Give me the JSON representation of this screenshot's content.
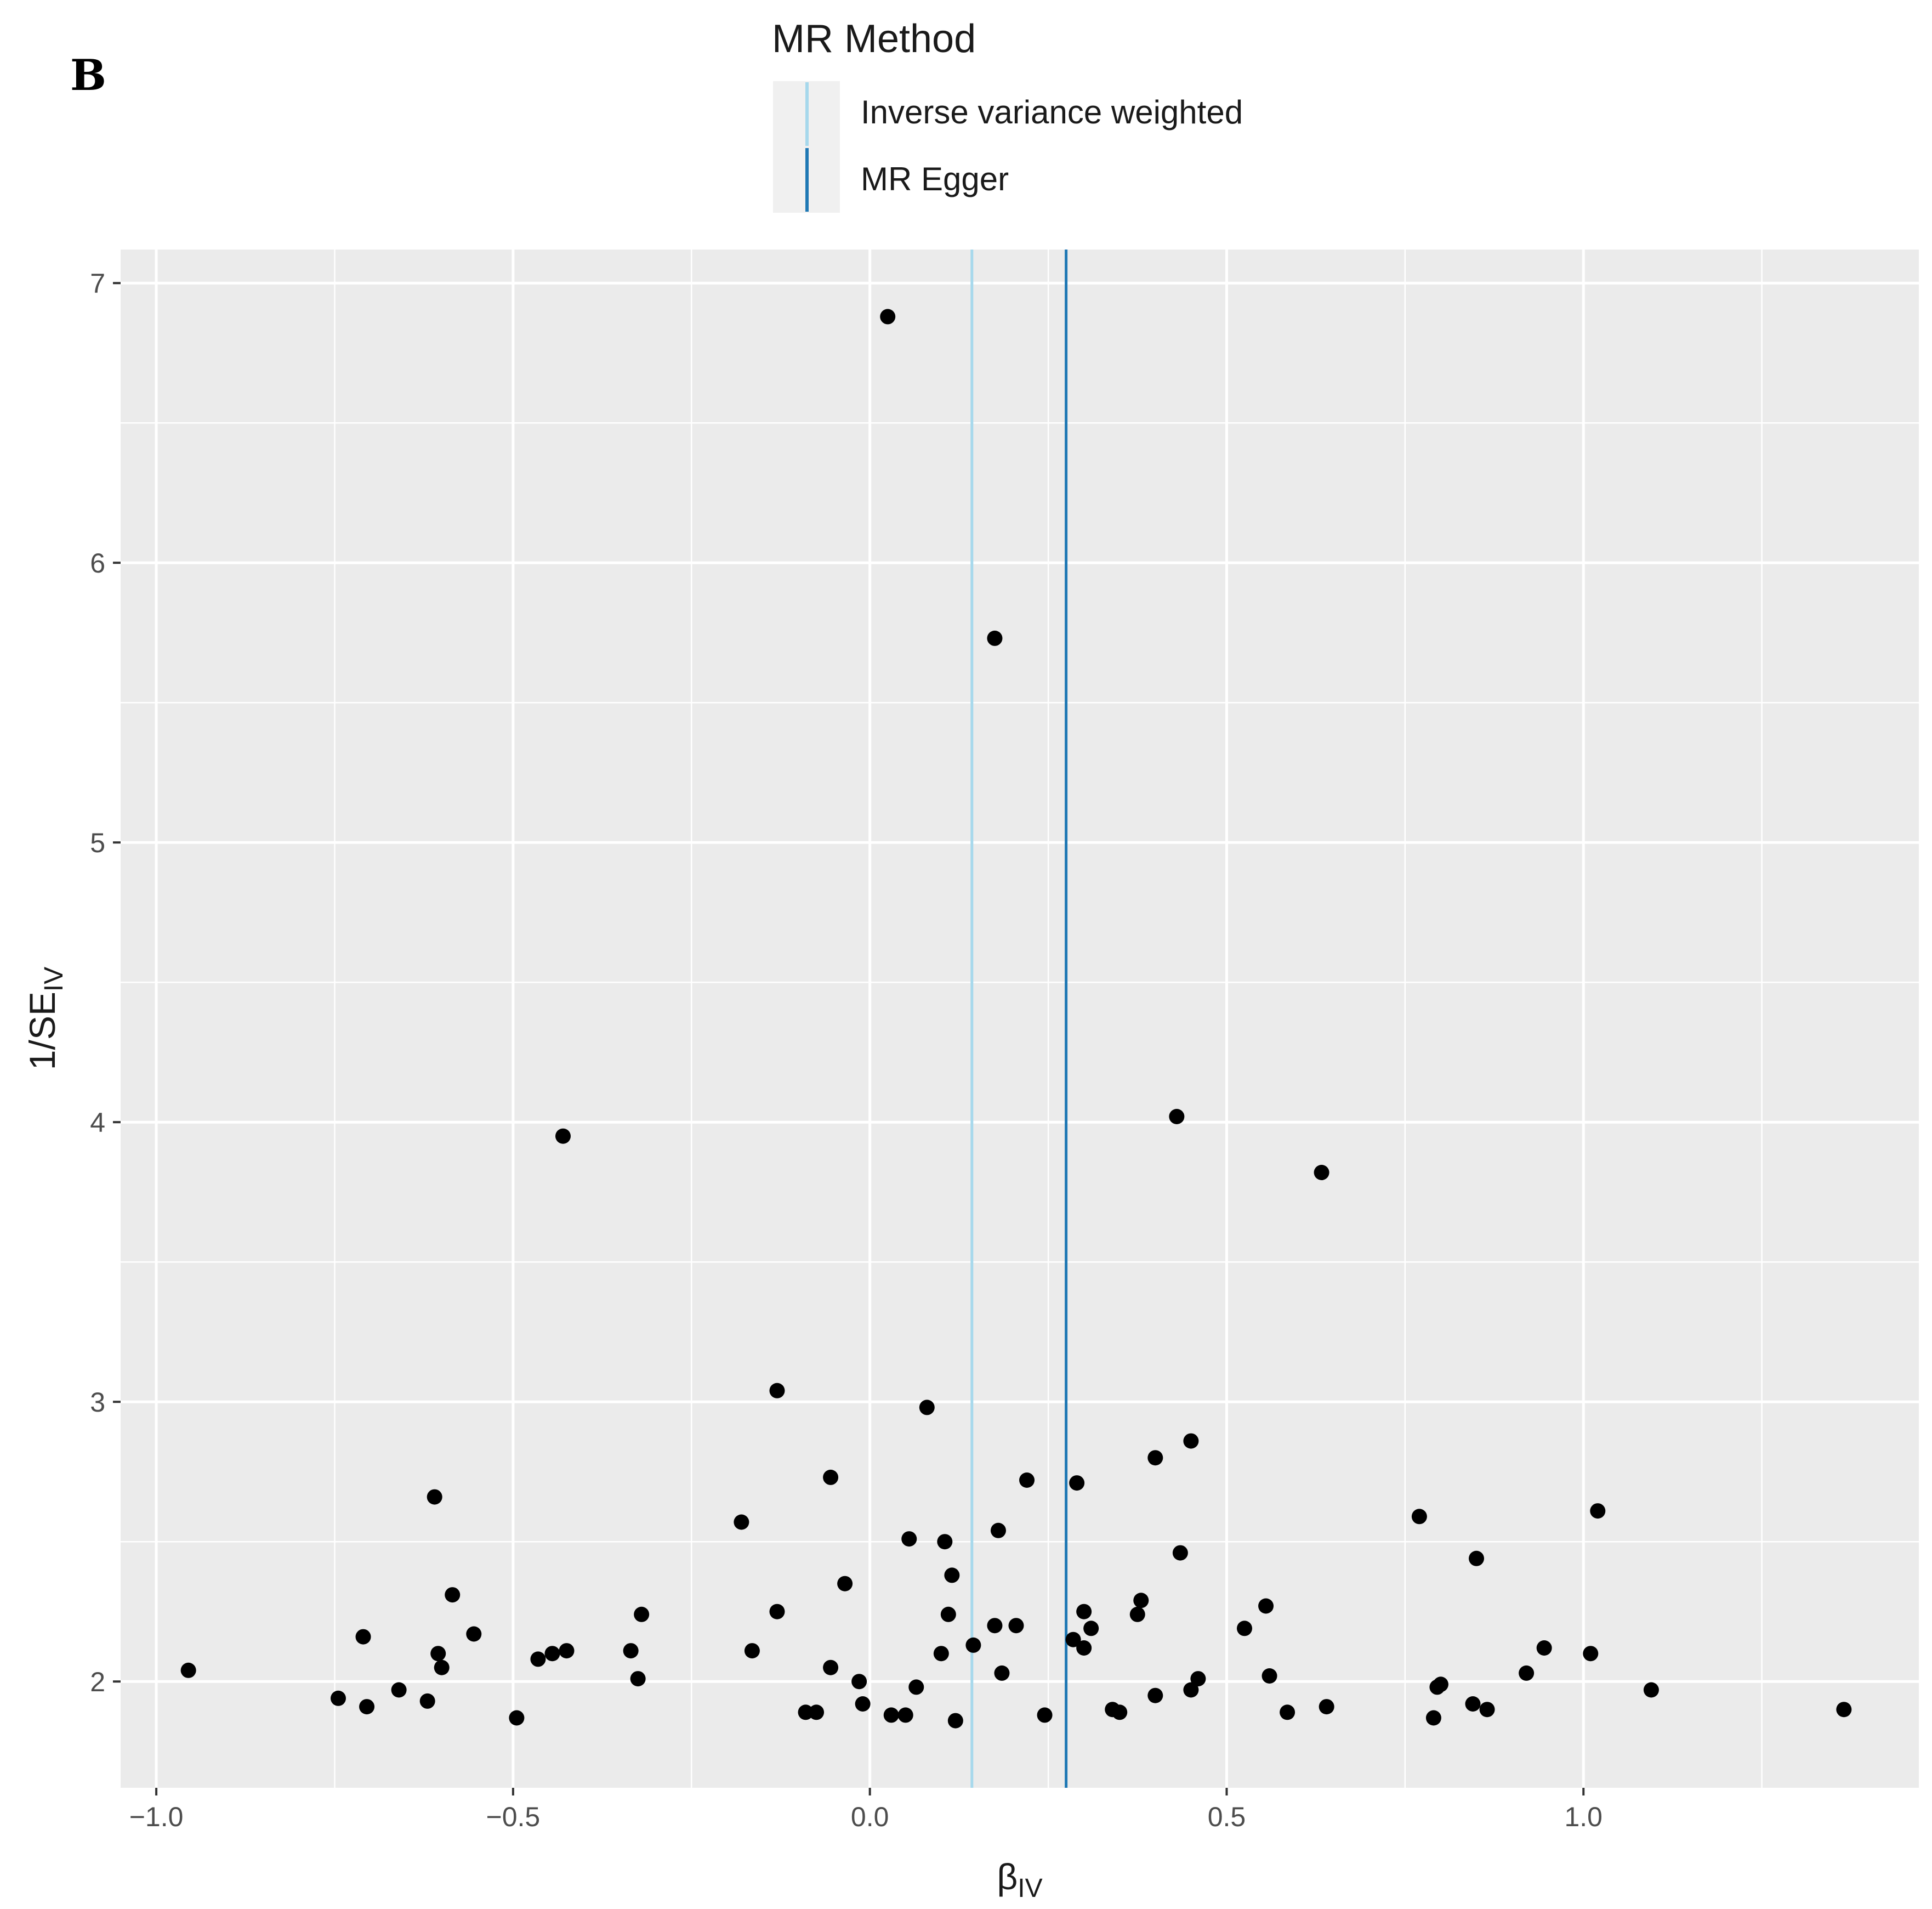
{
  "panel_label": "B",
  "legend": {
    "title": "MR Method",
    "entries": [
      {
        "label": "Inverse variance weighted",
        "color": "#a6d8ec"
      },
      {
        "label": "MR Egger",
        "color": "#1f78b4"
      }
    ]
  },
  "chart_data": {
    "type": "scatter",
    "title": "",
    "xlabel": "β",
    "xlabel_sub": "IV",
    "ylabel": "1/SE",
    "ylabel_sub": "IV",
    "xlim": [
      -1.05,
      1.47
    ],
    "ylim": [
      1.62,
      7.12
    ],
    "x_ticks": [
      -1.0,
      -0.5,
      0.0,
      0.5,
      1.0
    ],
    "x_tick_labels": [
      "−1.0",
      "−0.5",
      "0.0",
      "0.5",
      "1.0"
    ],
    "y_ticks": [
      2,
      3,
      4,
      5,
      6,
      7
    ],
    "y_tick_labels": [
      "2",
      "3",
      "4",
      "5",
      "6",
      "7"
    ],
    "grid": true,
    "panel_background": "#ebebeb",
    "point_color": "#000000",
    "vlines": [
      {
        "method": "Inverse variance weighted",
        "x": 0.143,
        "color": "#a6d8ec"
      },
      {
        "method": "MR Egger",
        "x": 0.275,
        "color": "#1f78b4"
      }
    ],
    "points": [
      {
        "x": 0.025,
        "y": 6.88
      },
      {
        "x": 0.175,
        "y": 5.73
      },
      {
        "x": -0.43,
        "y": 3.95
      },
      {
        "x": 0.43,
        "y": 4.02
      },
      {
        "x": 0.633,
        "y": 3.82
      },
      {
        "x": -0.13,
        "y": 3.04
      },
      {
        "x": 0.08,
        "y": 2.98
      },
      {
        "x": 0.45,
        "y": 2.86
      },
      {
        "x": 0.4,
        "y": 2.8
      },
      {
        "x": -0.055,
        "y": 2.73
      },
      {
        "x": 0.22,
        "y": 2.72
      },
      {
        "x": 0.29,
        "y": 2.71
      },
      {
        "x": -0.61,
        "y": 2.66
      },
      {
        "x": 1.02,
        "y": 2.61
      },
      {
        "x": 0.77,
        "y": 2.59
      },
      {
        "x": -0.18,
        "y": 2.57
      },
      {
        "x": 0.18,
        "y": 2.54
      },
      {
        "x": 0.055,
        "y": 2.51
      },
      {
        "x": 0.105,
        "y": 2.5
      },
      {
        "x": 0.435,
        "y": 2.46
      },
      {
        "x": 0.85,
        "y": 2.44
      },
      {
        "x": 0.115,
        "y": 2.38
      },
      {
        "x": -0.035,
        "y": 2.35
      },
      {
        "x": -0.585,
        "y": 2.31
      },
      {
        "x": 0.38,
        "y": 2.29
      },
      {
        "x": 0.555,
        "y": 2.27
      },
      {
        "x": -0.13,
        "y": 2.25
      },
      {
        "x": 0.3,
        "y": 2.25
      },
      {
        "x": -0.32,
        "y": 2.24
      },
      {
        "x": 0.11,
        "y": 2.24
      },
      {
        "x": 0.375,
        "y": 2.24
      },
      {
        "x": 0.175,
        "y": 2.2
      },
      {
        "x": 0.205,
        "y": 2.2
      },
      {
        "x": 0.31,
        "y": 2.19
      },
      {
        "x": 0.525,
        "y": 2.19
      },
      {
        "x": -0.555,
        "y": 2.17
      },
      {
        "x": -0.71,
        "y": 2.16
      },
      {
        "x": 0.285,
        "y": 2.15
      },
      {
        "x": 0.145,
        "y": 2.13
      },
      {
        "x": 0.3,
        "y": 2.12
      },
      {
        "x": 0.945,
        "y": 2.12
      },
      {
        "x": -0.335,
        "y": 2.11
      },
      {
        "x": -0.425,
        "y": 2.11
      },
      {
        "x": -0.165,
        "y": 2.11
      },
      {
        "x": -0.605,
        "y": 2.1
      },
      {
        "x": -0.445,
        "y": 2.1
      },
      {
        "x": 0.1,
        "y": 2.1
      },
      {
        "x": 1.01,
        "y": 2.1
      },
      {
        "x": -0.465,
        "y": 2.08
      },
      {
        "x": -0.6,
        "y": 2.05
      },
      {
        "x": -0.055,
        "y": 2.05
      },
      {
        "x": -0.955,
        "y": 2.04
      },
      {
        "x": 0.185,
        "y": 2.03
      },
      {
        "x": 0.92,
        "y": 2.03
      },
      {
        "x": 0.46,
        "y": 2.01
      },
      {
        "x": 0.56,
        "y": 2.02
      },
      {
        "x": -0.325,
        "y": 2.01
      },
      {
        "x": -0.015,
        "y": 2.0
      },
      {
        "x": 0.065,
        "y": 1.98
      },
      {
        "x": 0.795,
        "y": 1.98
      },
      {
        "x": 0.8,
        "y": 1.99
      },
      {
        "x": -0.66,
        "y": 1.97
      },
      {
        "x": 0.45,
        "y": 1.97
      },
      {
        "x": 1.095,
        "y": 1.97
      },
      {
        "x": 0.4,
        "y": 1.95
      },
      {
        "x": -0.745,
        "y": 1.94
      },
      {
        "x": -0.62,
        "y": 1.93
      },
      {
        "x": -0.01,
        "y": 1.92
      },
      {
        "x": 0.845,
        "y": 1.92
      },
      {
        "x": -0.705,
        "y": 1.91
      },
      {
        "x": 0.64,
        "y": 1.91
      },
      {
        "x": 0.865,
        "y": 1.9
      },
      {
        "x": 1.365,
        "y": 1.9
      },
      {
        "x": 0.34,
        "y": 1.9
      },
      {
        "x": 0.585,
        "y": 1.89
      },
      {
        "x": -0.09,
        "y": 1.89
      },
      {
        "x": -0.075,
        "y": 1.89
      },
      {
        "x": 0.35,
        "y": 1.89
      },
      {
        "x": 0.03,
        "y": 1.88
      },
      {
        "x": 0.05,
        "y": 1.88
      },
      {
        "x": 0.245,
        "y": 1.88
      },
      {
        "x": -0.495,
        "y": 1.87
      },
      {
        "x": 0.79,
        "y": 1.87
      },
      {
        "x": 0.12,
        "y": 1.86
      }
    ]
  }
}
